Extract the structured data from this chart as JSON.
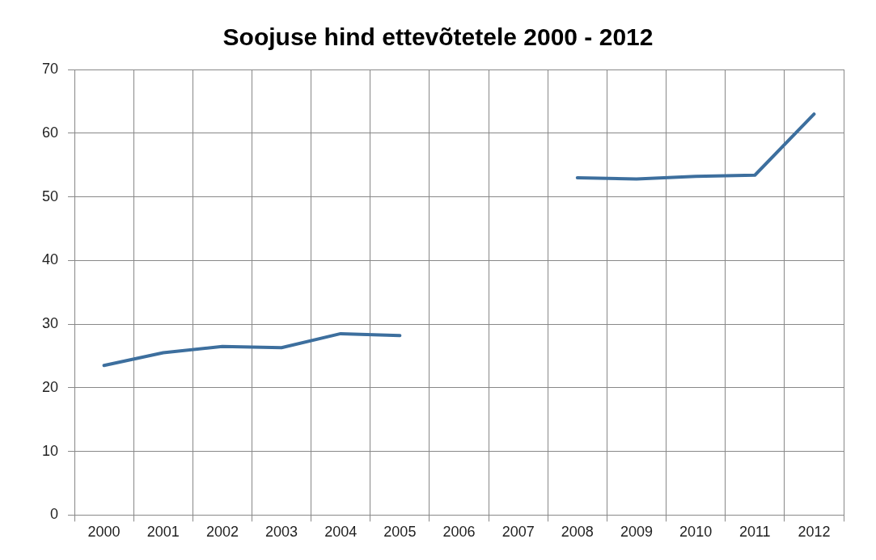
{
  "chart_data": {
    "type": "line",
    "title": "Soojuse hind ettevõtetele 2000 - 2012",
    "categories": [
      "2000",
      "2001",
      "2002",
      "2003",
      "2004",
      "2005",
      "2006",
      "2007",
      "2008",
      "2009",
      "2010",
      "2011",
      "2012"
    ],
    "series": [
      {
        "color": "#3d6f9e",
        "values": [
          23.5,
          25.5,
          26.5,
          26.3,
          28.5,
          28.2,
          null,
          null,
          53,
          52.8,
          53.2,
          53.4,
          63
        ]
      }
    ],
    "ylim": [
      0,
      70
    ],
    "yticks": [
      0,
      10,
      20,
      30,
      40,
      50,
      60,
      70
    ],
    "grid": true,
    "legend": false,
    "marker": "none"
  }
}
